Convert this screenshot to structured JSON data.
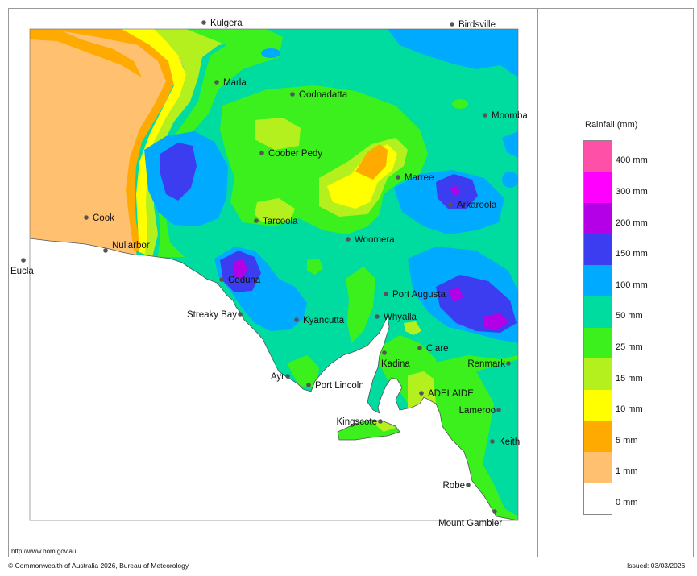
{
  "legend": {
    "title": "Rainfall (mm)",
    "classes": [
      {
        "label": "400 mm",
        "color": "#ff50a8"
      },
      {
        "label": "300 mm",
        "color": "#ff00ff"
      },
      {
        "label": "200 mm",
        "color": "#b400e6"
      },
      {
        "label": "150 mm",
        "color": "#3c3cf0"
      },
      {
        "label": "100 mm",
        "color": "#00aaff"
      },
      {
        "label": "50 mm",
        "color": "#00dca0"
      },
      {
        "label": "25 mm",
        "color": "#3cf01e"
      },
      {
        "label": "15 mm",
        "color": "#b4f01e"
      },
      {
        "label": "10 mm",
        "color": "#ffff00"
      },
      {
        "label": "5 mm",
        "color": "#ffaa00"
      },
      {
        "label": "1 mm",
        "color": "#ffc070"
      },
      {
        "label": "0 mm",
        "color": "#ffffff"
      }
    ]
  },
  "places": [
    {
      "name": "Kulgera"
    },
    {
      "name": "Birdsville"
    },
    {
      "name": "Marla"
    },
    {
      "name": "Oodnadatta"
    },
    {
      "name": "Moomba"
    },
    {
      "name": "Coober Pedy"
    },
    {
      "name": "Marree"
    },
    {
      "name": "Arkaroola"
    },
    {
      "name": "Cook"
    },
    {
      "name": "Tarcoola"
    },
    {
      "name": "Woomera"
    },
    {
      "name": "Nullarbor"
    },
    {
      "name": "Eucla"
    },
    {
      "name": "Ceduna"
    },
    {
      "name": "Port Augusta"
    },
    {
      "name": "Streaky Bay"
    },
    {
      "name": "Kyancutta"
    },
    {
      "name": "Whyalla"
    },
    {
      "name": "Clare"
    },
    {
      "name": "Renmark"
    },
    {
      "name": "Kadina"
    },
    {
      "name": "Ayr"
    },
    {
      "name": "Port Lincoln"
    },
    {
      "name": "ADELAIDE"
    },
    {
      "name": "Lameroo"
    },
    {
      "name": "Kingscote"
    },
    {
      "name": "Keith"
    },
    {
      "name": "Robe"
    },
    {
      "name": "Mount Gambier"
    }
  ],
  "footer": {
    "url": "http://www.bom.gov.au",
    "copyright": "© Commonwealth of Australia 2026, Bureau of Meteorology",
    "issued": "Issued: 03/03/2026"
  }
}
